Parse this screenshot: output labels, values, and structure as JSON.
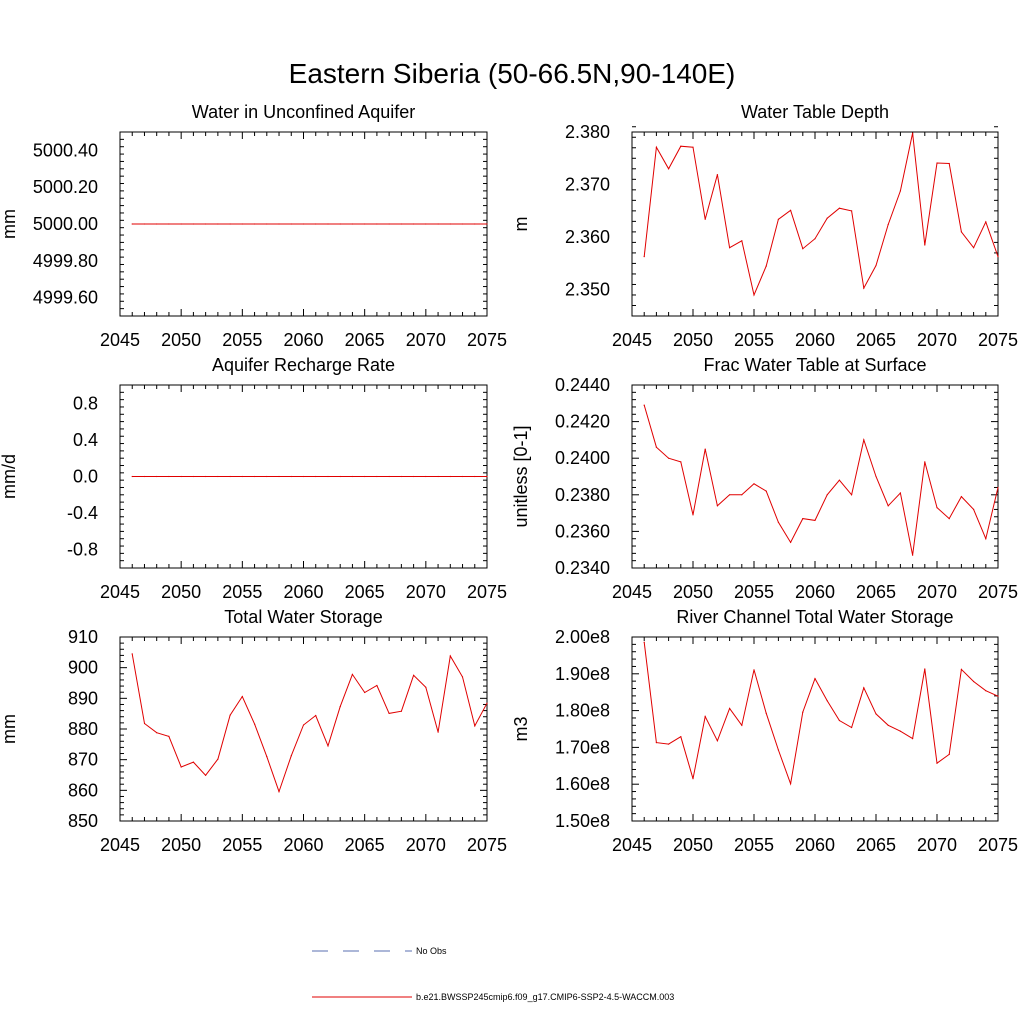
{
  "figure_title": "Eastern Siberia (50-66.5N,90-140E)",
  "legend": {
    "entries": [
      {
        "label": "No Obs",
        "color": "#5a6fb0",
        "style": "dashed"
      },
      {
        "label": "b.e21.BWSSP245cmip6.f09_g17.CMIP6-SSP2-4.5-WACCM.003",
        "color": "#e00000",
        "style": "solid"
      }
    ]
  },
  "colors": {
    "series": "#e00000",
    "axis": "#000000"
  },
  "chart_data": [
    {
      "type": "line",
      "title": "Water in Unconfined Aquifer",
      "ylabel": "mm",
      "xlim": [
        2045,
        2075
      ],
      "ylim": [
        4999.5,
        5000.5
      ],
      "xticks": [
        2045,
        2050,
        2055,
        2060,
        2065,
        2070,
        2075
      ],
      "yticks": [
        4999.6,
        4999.8,
        5000.0,
        5000.2,
        5000.4
      ],
      "ytick_labels": [
        "4999.60",
        "4999.80",
        "5000.00",
        "5000.20",
        "5000.40"
      ],
      "x": [
        2046,
        2047,
        2048,
        2049,
        2050,
        2051,
        2052,
        2053,
        2054,
        2055,
        2056,
        2057,
        2058,
        2059,
        2060,
        2061,
        2062,
        2063,
        2064,
        2065,
        2066,
        2067,
        2068,
        2069,
        2070,
        2071,
        2072,
        2073,
        2074,
        2075
      ],
      "series": [
        {
          "name": "b.e21.BWSSP245cmip6.f09_g17.CMIP6-SSP2-4.5-WACCM.003",
          "values": [
            5000,
            5000,
            5000,
            5000,
            5000,
            5000,
            5000,
            5000,
            5000,
            5000,
            5000,
            5000,
            5000,
            5000,
            5000,
            5000,
            5000,
            5000,
            5000,
            5000,
            5000,
            5000,
            5000,
            5000,
            5000,
            5000,
            5000,
            5000,
            5000,
            5000
          ]
        }
      ]
    },
    {
      "type": "line",
      "title": "Water Table Depth",
      "ylabel": "m",
      "xlim": [
        2045,
        2075
      ],
      "ylim": [
        2.345,
        2.38
      ],
      "xticks": [
        2045,
        2050,
        2055,
        2060,
        2065,
        2070,
        2075
      ],
      "yticks": [
        2.35,
        2.36,
        2.37,
        2.38
      ],
      "ytick_labels": [
        "2.350",
        "2.360",
        "2.370",
        "2.380"
      ],
      "x": [
        2046,
        2047,
        2048,
        2049,
        2050,
        2051,
        2052,
        2053,
        2054,
        2055,
        2056,
        2057,
        2058,
        2059,
        2060,
        2061,
        2062,
        2063,
        2064,
        2065,
        2066,
        2067,
        2068,
        2069,
        2070,
        2071,
        2072,
        2073,
        2074,
        2075
      ],
      "series": [
        {
          "name": "b.e21.BWSSP245cmip6.f09_g17.CMIP6-SSP2-4.5-WACCM.003",
          "values": [
            2.3563,
            2.3771,
            2.373,
            2.3773,
            2.3771,
            2.3634,
            2.3719,
            2.358,
            2.3593,
            2.349,
            2.3545,
            2.3634,
            2.3651,
            2.3578,
            2.3597,
            2.3636,
            2.3655,
            2.365,
            2.3503,
            2.3546,
            2.3624,
            2.3688,
            2.3798,
            2.3585,
            2.3741,
            2.374,
            2.361,
            2.358,
            2.3629,
            2.3563
          ]
        }
      ]
    },
    {
      "type": "line",
      "title": "Aquifer Recharge Rate",
      "ylabel": "mm/d",
      "xlim": [
        2045,
        2075
      ],
      "ylim": [
        -1.0,
        1.0
      ],
      "xticks": [
        2045,
        2050,
        2055,
        2060,
        2065,
        2070,
        2075
      ],
      "yticks": [
        -0.8,
        -0.4,
        0.0,
        0.4,
        0.8
      ],
      "ytick_labels": [
        "-0.8",
        "-0.4",
        "0.0",
        "0.4",
        "0.8"
      ],
      "x": [
        2046,
        2047,
        2048,
        2049,
        2050,
        2051,
        2052,
        2053,
        2054,
        2055,
        2056,
        2057,
        2058,
        2059,
        2060,
        2061,
        2062,
        2063,
        2064,
        2065,
        2066,
        2067,
        2068,
        2069,
        2070,
        2071,
        2072,
        2073,
        2074,
        2075
      ],
      "series": [
        {
          "name": "b.e21.BWSSP245cmip6.f09_g17.CMIP6-SSP2-4.5-WACCM.003",
          "values": [
            0,
            0,
            0,
            0,
            0,
            0,
            0,
            0,
            0,
            0,
            0,
            0,
            0,
            0,
            0,
            0,
            0,
            0,
            0,
            0,
            0,
            0,
            0,
            0,
            0,
            0,
            0,
            0,
            0,
            0
          ]
        }
      ]
    },
    {
      "type": "line",
      "title": "Frac Water Table at Surface",
      "ylabel": "unitless [0-1]",
      "xlim": [
        2045,
        2075
      ],
      "ylim": [
        0.234,
        0.244
      ],
      "xticks": [
        2045,
        2050,
        2055,
        2060,
        2065,
        2070,
        2075
      ],
      "yticks": [
        0.234,
        0.236,
        0.238,
        0.24,
        0.242,
        0.244
      ],
      "ytick_labels": [
        "0.2340",
        "0.2360",
        "0.2380",
        "0.2400",
        "0.2420",
        "0.2440"
      ],
      "x": [
        2046,
        2047,
        2048,
        2049,
        2050,
        2051,
        2052,
        2053,
        2054,
        2055,
        2056,
        2057,
        2058,
        2059,
        2060,
        2061,
        2062,
        2063,
        2064,
        2065,
        2066,
        2067,
        2068,
        2069,
        2070,
        2071,
        2072,
        2073,
        2074,
        2075
      ],
      "series": [
        {
          "name": "b.e21.BWSSP245cmip6.f09_g17.CMIP6-SSP2-4.5-WACCM.003",
          "values": [
            0.2429,
            0.2406,
            0.24,
            0.2398,
            0.2369,
            0.2405,
            0.2374,
            0.238,
            0.238,
            0.2386,
            0.2382,
            0.2365,
            0.2354,
            0.2367,
            0.2366,
            0.238,
            0.2388,
            0.238,
            0.241,
            0.239,
            0.2374,
            0.2381,
            0.2347,
            0.2398,
            0.2373,
            0.2367,
            0.2379,
            0.2372,
            0.2356,
            0.2384
          ]
        }
      ]
    },
    {
      "type": "line",
      "title": "Total Water Storage",
      "ylabel": "mm",
      "xlim": [
        2045,
        2075
      ],
      "ylim": [
        850,
        910
      ],
      "xticks": [
        2045,
        2050,
        2055,
        2060,
        2065,
        2070,
        2075
      ],
      "yticks": [
        850,
        860,
        870,
        880,
        890,
        900,
        910
      ],
      "ytick_labels": [
        "850",
        "860",
        "870",
        "880",
        "890",
        "900",
        "910"
      ],
      "x": [
        2046,
        2047,
        2048,
        2049,
        2050,
        2051,
        2052,
        2053,
        2054,
        2055,
        2056,
        2057,
        2058,
        2059,
        2060,
        2061,
        2062,
        2063,
        2064,
        2065,
        2066,
        2067,
        2068,
        2069,
        2070,
        2071,
        2072,
        2073,
        2074,
        2075
      ],
      "series": [
        {
          "name": "b.e21.BWSSP245cmip6.f09_g17.CMIP6-SSP2-4.5-WACCM.003",
          "values": [
            904.5,
            881.8,
            878.8,
            877.6,
            867.6,
            869.2,
            864.9,
            870.2,
            884.5,
            890.6,
            881.6,
            871.0,
            859.6,
            871.3,
            881.3,
            884.4,
            874.5,
            887.3,
            897.8,
            891.9,
            894.2,
            885.1,
            885.8,
            897.5,
            893.6,
            879.0,
            903.8,
            897.0,
            881.0,
            888.4
          ]
        }
      ]
    },
    {
      "type": "line",
      "title": "River Channel Total Water Storage",
      "ylabel": "m3",
      "xlim": [
        2045,
        2075
      ],
      "ylim": [
        150000000,
        200000000
      ],
      "xticks": [
        2045,
        2050,
        2055,
        2060,
        2065,
        2070,
        2075
      ],
      "yticks": [
        150000000,
        160000000,
        170000000,
        180000000,
        190000000,
        200000000
      ],
      "ytick_labels": [
        "1.50e8",
        "1.60e8",
        "1.70e8",
        "1.80e8",
        "1.90e8",
        "2.00e8"
      ],
      "x": [
        2046,
        2047,
        2048,
        2049,
        2050,
        2051,
        2052,
        2053,
        2054,
        2055,
        2056,
        2057,
        2058,
        2059,
        2060,
        2061,
        2062,
        2063,
        2064,
        2065,
        2066,
        2067,
        2068,
        2069,
        2070,
        2071,
        2072,
        2073,
        2074,
        2075
      ],
      "series": [
        {
          "name": "b.e21.BWSSP245cmip6.f09_g17.CMIP6-SSP2-4.5-WACCM.003",
          "values": [
            198600000,
            171300000,
            170900000,
            172900000,
            161500000,
            178400000,
            171800000,
            180600000,
            176000000,
            191100000,
            179300000,
            169300000,
            160100000,
            179600000,
            188700000,
            182700000,
            177300000,
            175400000,
            186200000,
            179100000,
            176000000,
            174400000,
            172400000,
            191300000,
            165700000,
            168100000,
            191200000,
            187900000,
            185400000,
            183900000
          ]
        }
      ]
    }
  ]
}
